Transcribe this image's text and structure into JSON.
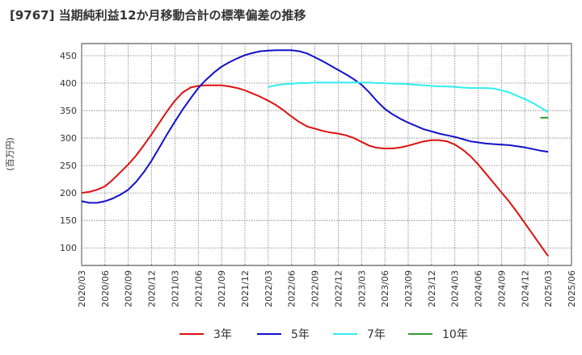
{
  "chart_data": {
    "type": "line",
    "title": "[9767]  当期純利益12か月移動合計の標準偏差の推移",
    "ylabel": "(百万円)",
    "xlabel": "",
    "ylim": [
      68,
      472
    ],
    "xlim": [
      "2020/03",
      "2025/06"
    ],
    "yticks": [
      100,
      150,
      200,
      250,
      300,
      350,
      400,
      450
    ],
    "xticks": [
      "2020/03",
      "2020/06",
      "2020/09",
      "2020/12",
      "2021/03",
      "2021/06",
      "2021/09",
      "2021/12",
      "2022/03",
      "2022/06",
      "2022/09",
      "2022/12",
      "2023/03",
      "2023/06",
      "2023/09",
      "2023/12",
      "2024/03",
      "2024/06",
      "2024/09",
      "2024/12",
      "2025/03",
      "2025/06"
    ],
    "grid": true,
    "legend_position": "bottom",
    "series": [
      {
        "name": "3年",
        "color": "#dd1111",
        "x": [
          "2020/03",
          "2020/04",
          "2020/05",
          "2020/06",
          "2020/07",
          "2020/08",
          "2020/09",
          "2020/10",
          "2020/11",
          "2020/12",
          "2021/01",
          "2021/02",
          "2021/03",
          "2021/04",
          "2021/05",
          "2021/06",
          "2021/07",
          "2021/08",
          "2021/09",
          "2021/10",
          "2021/11",
          "2021/12",
          "2022/01",
          "2022/02",
          "2022/03",
          "2022/04",
          "2022/05",
          "2022/06",
          "2022/07",
          "2022/08",
          "2022/09",
          "2022/10",
          "2022/11",
          "2022/12",
          "2023/01",
          "2023/02",
          "2023/03",
          "2023/04",
          "2023/05",
          "2023/06",
          "2023/07",
          "2023/08",
          "2023/09",
          "2023/10",
          "2023/11",
          "2023/12",
          "2024/01",
          "2024/02",
          "2024/03",
          "2024/04",
          "2024/05",
          "2024/06",
          "2024/07",
          "2024/08",
          "2024/09",
          "2024/10",
          "2024/11",
          "2024/12",
          "2025/01",
          "2025/02",
          "2025/03"
        ],
        "values": [
          200,
          202,
          206,
          212,
          224,
          238,
          252,
          268,
          287,
          307,
          328,
          349,
          368,
          383,
          392,
          395,
          396,
          396,
          396,
          394,
          391,
          387,
          381,
          375,
          368,
          360,
          350,
          339,
          329,
          321,
          317,
          313,
          310,
          308,
          305,
          300,
          293,
          286,
          282,
          281,
          281,
          283,
          286,
          290,
          294,
          296,
          296,
          294,
          288,
          279,
          267,
          252,
          235,
          218,
          201,
          184,
          165,
          145,
          125,
          105,
          85
        ]
      },
      {
        "name": "5年",
        "color": "#1111cc",
        "x": [
          "2020/03",
          "2020/04",
          "2020/05",
          "2020/06",
          "2020/07",
          "2020/08",
          "2020/09",
          "2020/10",
          "2020/11",
          "2020/12",
          "2021/01",
          "2021/02",
          "2021/03",
          "2021/04",
          "2021/05",
          "2021/06",
          "2021/07",
          "2021/08",
          "2021/09",
          "2021/10",
          "2021/11",
          "2021/12",
          "2022/01",
          "2022/02",
          "2022/03",
          "2022/04",
          "2022/05",
          "2022/06",
          "2022/07",
          "2022/08",
          "2022/09",
          "2022/10",
          "2022/11",
          "2022/12",
          "2023/01",
          "2023/02",
          "2023/03",
          "2023/04",
          "2023/05",
          "2023/06",
          "2023/07",
          "2023/08",
          "2023/09",
          "2023/10",
          "2023/11",
          "2023/12",
          "2024/01",
          "2024/02",
          "2024/03",
          "2024/04",
          "2024/05",
          "2024/06",
          "2024/07",
          "2024/08",
          "2024/09",
          "2024/10",
          "2024/11",
          "2024/12",
          "2025/01",
          "2025/02",
          "2025/03"
        ],
        "values": [
          185,
          182,
          182,
          185,
          190,
          197,
          206,
          220,
          238,
          259,
          283,
          307,
          330,
          352,
          372,
          391,
          406,
          419,
          430,
          438,
          445,
          451,
          455,
          458,
          459,
          460,
          460,
          460,
          458,
          454,
          447,
          440,
          432,
          424,
          416,
          407,
          397,
          383,
          367,
          353,
          343,
          335,
          328,
          322,
          316,
          312,
          308,
          305,
          302,
          298,
          294,
          292,
          290,
          289,
          288,
          287,
          285,
          283,
          280,
          277,
          275
        ]
      },
      {
        "name": "7年",
        "color": "#33eeee",
        "x": [
          "2022/03",
          "2022/04",
          "2022/05",
          "2022/06",
          "2022/07",
          "2022/08",
          "2022/09",
          "2022/10",
          "2022/11",
          "2022/12",
          "2023/01",
          "2023/02",
          "2023/03",
          "2023/04",
          "2023/05",
          "2023/06",
          "2023/07",
          "2023/08",
          "2023/09",
          "2023/10",
          "2023/11",
          "2023/12",
          "2024/01",
          "2024/02",
          "2024/03",
          "2024/04",
          "2024/05",
          "2024/06",
          "2024/07",
          "2024/08",
          "2024/09",
          "2024/10",
          "2024/11",
          "2024/12",
          "2025/01",
          "2025/02",
          "2025/03"
        ],
        "values": [
          393,
          396,
          398,
          399,
          400,
          400,
          401,
          401,
          401,
          401,
          401,
          401,
          401,
          401,
          400,
          400,
          399,
          399,
          398,
          397,
          396,
          395,
          394,
          394,
          393,
          392,
          391,
          391,
          391,
          390,
          387,
          383,
          377,
          371,
          364,
          356,
          347
        ]
      },
      {
        "name": "10年",
        "color": "#339933",
        "x": [
          "2025/02",
          "2025/03"
        ],
        "values": [
          337,
          337
        ]
      }
    ]
  }
}
